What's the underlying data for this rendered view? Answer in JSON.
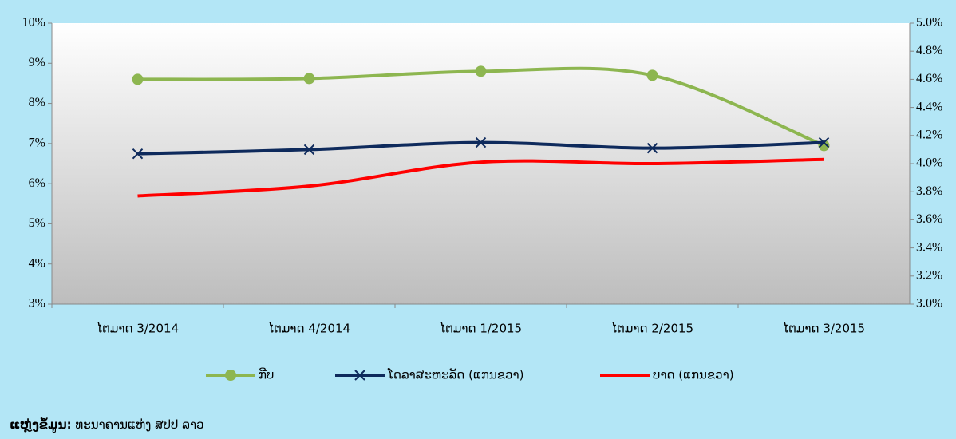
{
  "chart_data": {
    "type": "line",
    "categories": [
      "ໄຕມາດ 3/2014",
      "ໄຕມາດ 4/2014",
      "ໄຕມາດ 1/2015",
      "ໄຕມາດ 2/2015",
      "ໄຕມາດ 3/2015"
    ],
    "series": [
      {
        "name": "ກີບ",
        "color": "#8db650",
        "marker": "circle",
        "values": [
          8.6,
          8.62,
          8.8,
          8.7,
          6.95
        ]
      },
      {
        "name": "ໂດລາສະຫະລັດ (ແກນຂວາ)",
        "color": "#0e2a5c",
        "marker": "x",
        "axis": "y2",
        "values": [
          4.07,
          4.1,
          4.15,
          4.11,
          4.15
        ]
      },
      {
        "name": "ບາດ (ແກນຂວາ)",
        "color": "#ff0000",
        "axis": "y2",
        "values": [
          3.77,
          3.84,
          4.01,
          4.0,
          4.03
        ]
      }
    ],
    "ylim": [
      3,
      10
    ],
    "yticks": [
      {
        "value": 3,
        "label": "3%"
      },
      {
        "value": 4,
        "label": "4%"
      },
      {
        "value": 5,
        "label": "5%"
      },
      {
        "value": 6,
        "label": "6%"
      },
      {
        "value": 7,
        "label": "7%"
      },
      {
        "value": 8,
        "label": "8%"
      },
      {
        "value": 9,
        "label": "9%"
      },
      {
        "value": 10,
        "label": "10%"
      }
    ],
    "y2lim": [
      3.0,
      5.0
    ],
    "y2ticks": [
      {
        "value": 3.0,
        "label": "3.0%"
      },
      {
        "value": 3.2,
        "label": "3.2%"
      },
      {
        "value": 3.4,
        "label": "3.4%"
      },
      {
        "value": 3.6,
        "label": "3.6%"
      },
      {
        "value": 3.8,
        "label": "3.8%"
      },
      {
        "value": 4.0,
        "label": "4.0%"
      },
      {
        "value": 4.2,
        "label": "4.2%"
      },
      {
        "value": 4.4,
        "label": "4.4%"
      },
      {
        "value": 4.6,
        "label": "4.6%"
      },
      {
        "value": 4.8,
        "label": "4.8%"
      },
      {
        "value": 5.0,
        "label": "5.0%"
      }
    ],
    "legend": "bottom",
    "source_label": "ແຫຼ່ງຂໍ້ມູນ:",
    "source": "ທະນາຄານແຫ່ງ ສປປ ລາວ"
  }
}
